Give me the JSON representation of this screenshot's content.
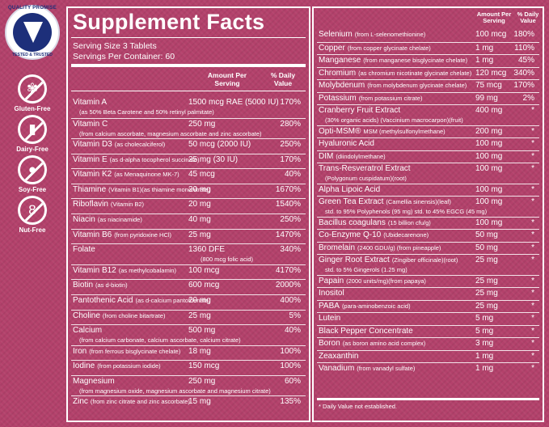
{
  "badges": {
    "seal_top": "QUALITY PROMISE",
    "seal_bottom": "TESTED & TRUSTED",
    "items": [
      {
        "icon": "wheat-icon",
        "label": "Gluten-Free"
      },
      {
        "icon": "milk-bottle-icon",
        "label": "Dairy-Free"
      },
      {
        "icon": "soybean-icon",
        "label": "Soy-Free"
      },
      {
        "icon": "peanut-icon",
        "label": "Nut-Free"
      }
    ]
  },
  "facts": {
    "title": "Supplement Facts",
    "serving_size": "Serving Size 3 Tablets",
    "servings_per": "Servings Per Container: 60",
    "hdr_amount": "Amount Per Serving",
    "hdr_dv": "% Daily Value",
    "left": [
      {
        "name": "Vitamin A",
        "amount": "1500 mcg RAE (5000 IU)",
        "dv": "170%",
        "sub": "(as 50% Beta Carotene and 50% retinyl palmitate)"
      },
      {
        "name": "Vitamin C",
        "amount": "250 mg",
        "dv": "280%",
        "sub": "(from calcium ascorbate, magnesium ascorbate and zinc ascorbate)"
      },
      {
        "name": "Vitamin D3",
        "note": "(as cholecalciferol)",
        "amount": "50 mcg (2000 IU)",
        "dv": "250%"
      },
      {
        "name": "Vitamin E",
        "note": "(as d-alpha tocopherol succinate)",
        "amount": "25 mg      (30 IU)",
        "dv": "170%"
      },
      {
        "name": "Vitamin K2",
        "note": "(as Menaquinone MK-7)",
        "amount": "45 mcg",
        "dv": "40%"
      },
      {
        "name": "Thiamine",
        "note": "(Vitamin B1)(as thiamine mononitrate)",
        "amount": "20 mg",
        "dv": "1670%"
      },
      {
        "name": "Riboflavin",
        "note": "(Vitamin B2)",
        "amount": "20 mg",
        "dv": "1540%"
      },
      {
        "name": "Niacin",
        "note": "(as niacinamide)",
        "amount": "40 mg",
        "dv": "250%"
      },
      {
        "name": "Vitamin B6",
        "note": "(from pyridoxine HCl)",
        "amount": "25 mg",
        "dv": "1470%"
      },
      {
        "name": "Folate",
        "amount": "1360 DFE",
        "dv": "340%",
        "sub": "(800 mcg folic acid)"
      },
      {
        "name": "Vitamin B12",
        "note": "(as methylcobalamin)",
        "amount": "100 mcg",
        "dv": "4170%"
      },
      {
        "name": "Biotin",
        "note": "(as d-biotin)",
        "amount": "600 mcg",
        "dv": "2000%"
      },
      {
        "name": "Pantothenic Acid",
        "note": "(as d-calcium pantothenate)",
        "amount": "20 mg",
        "dv": "400%"
      },
      {
        "name": "Choline",
        "note": "(from choline bitartrate)",
        "amount": "25 mg",
        "dv": "5%"
      },
      {
        "name": "Calcium",
        "amount": "500 mg",
        "dv": "40%",
        "sub": "(from calcium carbonate, calcium ascorbate, calcium citrate)"
      },
      {
        "name": "Iron",
        "note": "(from ferrous bisglycinate chelate)",
        "amount": "18 mg",
        "dv": "100%"
      },
      {
        "name": "Iodine",
        "note": "(from potassium iodide)",
        "amount": "150 mcg",
        "dv": "100%"
      },
      {
        "name": "Magnesium",
        "amount": "250 mg",
        "dv": "60%",
        "sub": "(from magnesium oxide, magnesium ascorbate and magnesium citrate)"
      },
      {
        "name": "Zinc",
        "note": "(from zinc citrate and zinc ascorbate)",
        "amount": "15 mg",
        "dv": "135%"
      }
    ],
    "right_hdr_amount": "Amount Per Serving",
    "right_hdr_dv": "% Daily Value",
    "right": [
      {
        "name": "Selenium",
        "note": "(from L-selenomethionine)",
        "amount": "100 mcg",
        "dv": "180%"
      },
      {
        "name": "Copper",
        "note": "(from copper glycinate chelate)",
        "amount": "1 mg",
        "dv": "110%"
      },
      {
        "name": "Manganese",
        "note": "(from manganese bisglycinate chelate)",
        "amount": "1 mg",
        "dv": "45%"
      },
      {
        "name": "Chromium",
        "note": "(as chromium nicotinate glycinate chelate)",
        "amount": "120 mcg",
        "dv": "340%"
      },
      {
        "name": "Molybdenum",
        "note": "(from molybdenum glycinate chelate)",
        "amount": "75 mcg",
        "dv": "170%"
      },
      {
        "name": "Potassium",
        "note": "(from potassium citrate)",
        "amount": "99 mg",
        "dv": "2%"
      },
      {
        "name": "Cranberry Fruit Extract",
        "amount": "400 mg",
        "dv": "*",
        "sub": "(30% organic acids) (Vaccinium macrocarpon)(fruit)"
      },
      {
        "name": "Opti-MSM®",
        "note": "MSM (methylsulfonylmethane)",
        "amount": "200 mg",
        "dv": "*"
      },
      {
        "name": "Hyaluronic Acid",
        "amount": "100 mg",
        "dv": "*"
      },
      {
        "name": "DIM",
        "note": "(diindolylmethane)",
        "amount": "100 mg",
        "dv": "*"
      },
      {
        "name": "Trans-Resveratrol Extract",
        "amount": "100 mg",
        "dv": "*",
        "sub": "(Polygonum cuspidatum)(root)"
      },
      {
        "name": "Alpha Lipoic Acid",
        "amount": "100 mg",
        "dv": "*"
      },
      {
        "name": "Green Tea Extract",
        "note": "(Camellia sinensis)(leaf)",
        "amount": "100 mg",
        "dv": "*",
        "sub": "std. to 95% Polyphenols (95 mg) std. to 45% EGCG (45 mg)"
      },
      {
        "name": "Bacillus coagulans",
        "note": "(15 billion cfu/g)",
        "amount": "100 mg",
        "dv": "*"
      },
      {
        "name": "Co-Enzyme Q-10",
        "note": "(Ubidecarenone)",
        "amount": "50 mg",
        "dv": "*"
      },
      {
        "name": "Bromelain",
        "note": "(2400 GDU/g) (from pineapple)",
        "amount": "50 mg",
        "dv": "*"
      },
      {
        "name": "Ginger Root Extract",
        "note": "(Zingiber officinale)(root)",
        "amount": "25 mg",
        "dv": "*",
        "sub": "std. to 5% Gingerols (1.25 mg)"
      },
      {
        "name": "Papain",
        "note": "(2000 units/mg)(from papaya)",
        "amount": "25 mg",
        "dv": "*"
      },
      {
        "name": "Inositol",
        "amount": "25 mg",
        "dv": "*"
      },
      {
        "name": "PABA",
        "note": "(para-aminobenzoic acid)",
        "amount": "25 mg",
        "dv": "*"
      },
      {
        "name": "Lutein",
        "amount": "5 mg",
        "dv": "*"
      },
      {
        "name": "Black Pepper Concentrate",
        "amount": "5 mg",
        "dv": "*"
      },
      {
        "name": "Boron",
        "note": "(as boron amino acid complex)",
        "amount": "3 mg",
        "dv": "*"
      },
      {
        "name": "Zeaxanthin",
        "amount": "1 mg",
        "dv": "*"
      },
      {
        "name": "Vanadium",
        "note": "(from vanadyl sulfate)",
        "amount": "1 mg",
        "dv": "*"
      }
    ],
    "footnote": "* Daily Value not established."
  }
}
